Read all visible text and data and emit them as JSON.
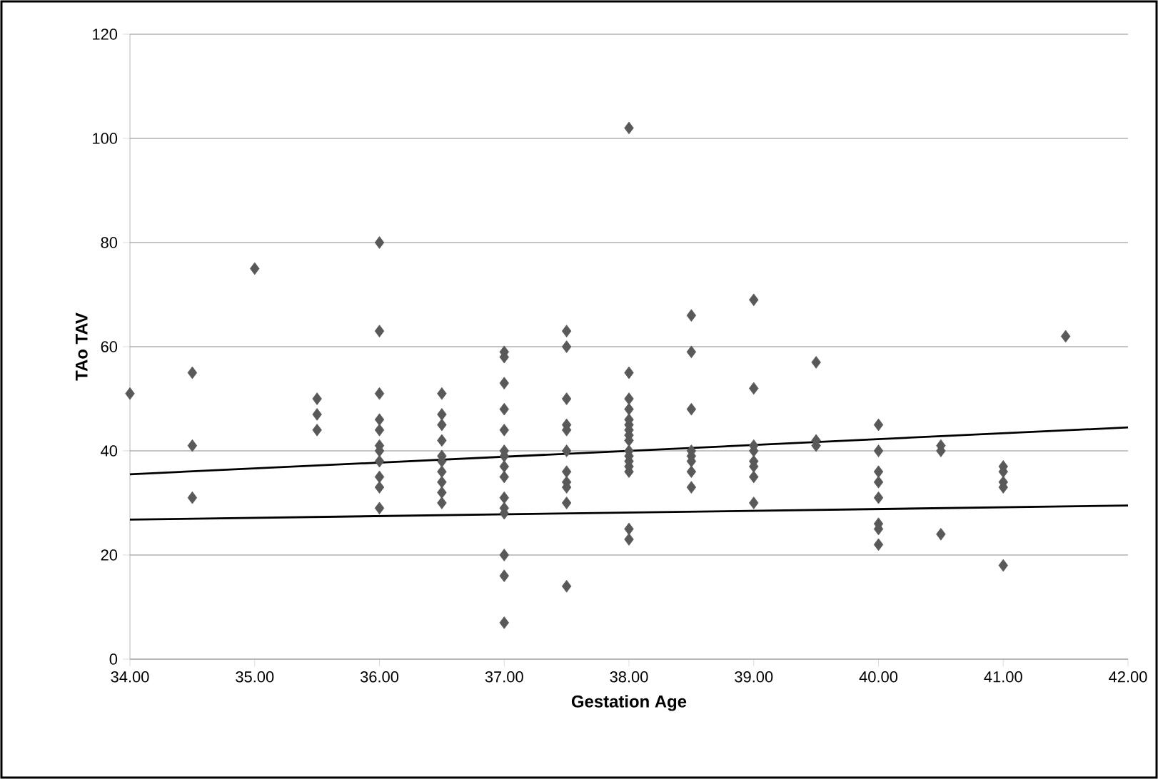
{
  "chart_data": {
    "type": "scatter",
    "xlabel": "Gestation Age",
    "ylabel": "TAo TAV",
    "xlim": [
      34,
      42
    ],
    "ylim": [
      0,
      120
    ],
    "xticks": [
      {
        "value": 34,
        "label": "34.00"
      },
      {
        "value": 35,
        "label": "35.00"
      },
      {
        "value": 36,
        "label": "36.00"
      },
      {
        "value": 37,
        "label": "37.00"
      },
      {
        "value": 38,
        "label": "38.00"
      },
      {
        "value": 39,
        "label": "39.00"
      },
      {
        "value": 40,
        "label": "40.00"
      },
      {
        "value": 41,
        "label": "41.00"
      },
      {
        "value": 42,
        "label": "42.00"
      }
    ],
    "yticks": [
      0,
      20,
      40,
      60,
      80,
      100,
      120
    ],
    "grid": "y",
    "marker": "diamond",
    "series": [
      {
        "color": "#595959",
        "x": [
          34,
          34.5,
          34.5,
          34.5,
          35,
          35.5,
          35.5,
          35.5,
          36,
          36,
          36,
          36,
          36,
          36,
          36,
          36,
          36,
          36,
          36,
          36.5,
          36.5,
          36.5,
          36.5,
          36.5,
          36.5,
          36.5,
          36.5,
          36.5,
          36.5,
          37,
          37,
          37,
          37,
          37,
          37,
          37,
          37,
          37,
          37,
          37,
          37,
          37,
          37,
          37,
          37.5,
          37.5,
          37.5,
          37.5,
          37.5,
          37.5,
          37.5,
          37.5,
          37.5,
          37.5,
          37.5,
          38,
          38,
          38,
          38,
          38,
          38,
          38,
          38,
          38,
          38,
          38,
          38,
          38,
          38,
          38,
          38,
          38.5,
          38.5,
          38.5,
          38.5,
          38.5,
          38.5,
          38.5,
          38.5,
          39,
          39,
          39,
          39,
          39,
          39,
          39,
          39,
          39.5,
          39.5,
          39.5,
          40,
          40,
          40,
          40,
          40,
          40,
          40,
          40,
          40.5,
          40.5,
          40.5,
          41,
          41,
          41,
          41,
          41,
          41.5
        ],
        "values": [
          51,
          55,
          41,
          31,
          75,
          50,
          47,
          44,
          80,
          63,
          51,
          46,
          44,
          41,
          40,
          38,
          35,
          33,
          29,
          51,
          47,
          45,
          42,
          39,
          38,
          36,
          34,
          32,
          30,
          59,
          58,
          53,
          48,
          44,
          40,
          39,
          37,
          35,
          31,
          29,
          28,
          20,
          16,
          7,
          63,
          60,
          50,
          45,
          44,
          40,
          36,
          34,
          33,
          30,
          14,
          102,
          55,
          50,
          48,
          46,
          45,
          44,
          43,
          42,
          40,
          39,
          38,
          37,
          36,
          25,
          23,
          66,
          59,
          48,
          40,
          39,
          38,
          36,
          33,
          69,
          52,
          41,
          40,
          38,
          37,
          35,
          30,
          57,
          42,
          41,
          45,
          40,
          36,
          34,
          31,
          26,
          25,
          22,
          41,
          40,
          24,
          37,
          36,
          34,
          33,
          18,
          62
        ]
      },
      {
        "type": "line",
        "color": "#000000",
        "marker": "none",
        "x": [
          34,
          42
        ],
        "values": [
          35.5,
          44.5
        ]
      },
      {
        "type": "line",
        "color": "#000000",
        "marker": "none",
        "x": [
          34,
          42
        ],
        "values": [
          26.8,
          29.5
        ]
      }
    ]
  }
}
